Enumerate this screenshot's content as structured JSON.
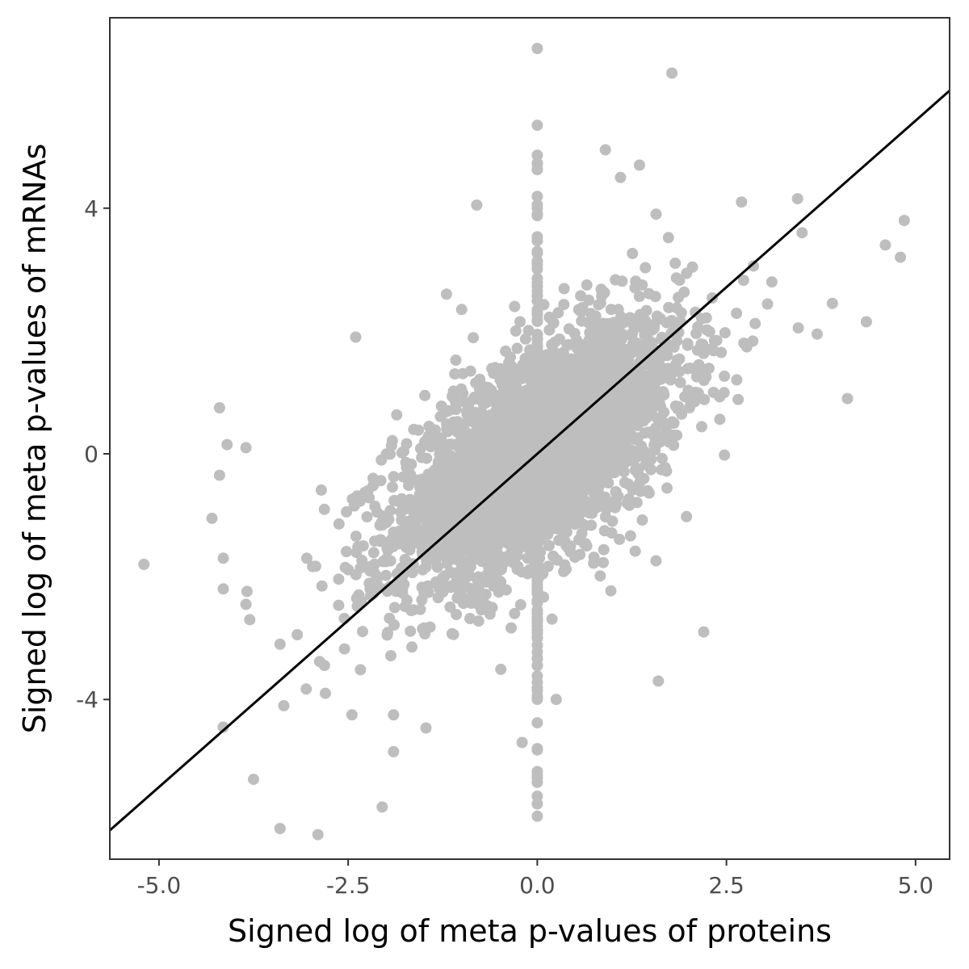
{
  "chart_data": {
    "type": "scatter",
    "xlabel": "Signed log of meta p-values of proteins",
    "ylabel": "Signed log of meta p-values of mRNAs",
    "xlim": [
      -5.65,
      5.45
    ],
    "ylim": [
      -6.6,
      7.1
    ],
    "x_ticks": [
      -5.0,
      -2.5,
      0.0,
      2.5,
      5.0
    ],
    "x_tick_labels": [
      "-5.0",
      "-2.5",
      "0.0",
      "2.5",
      "5.0"
    ],
    "y_ticks": [
      -4,
      0,
      4
    ],
    "y_tick_labels": [
      "-4",
      "0",
      "4"
    ],
    "grid": false,
    "legend": "none",
    "point_color": "#bebebe",
    "line_color": "#000000",
    "frame_color": "#333333",
    "fit_line": {
      "slope": 1.085,
      "intercept": 0.0
    },
    "points_outliers": [
      [
        0.0,
        6.6
      ],
      [
        1.78,
        6.2
      ],
      [
        0.0,
        5.35
      ],
      [
        0.9,
        4.95
      ],
      [
        1.35,
        4.7
      ],
      [
        1.1,
        4.5
      ],
      [
        -0.8,
        4.05
      ],
      [
        0.0,
        4.0
      ],
      [
        2.7,
        4.1
      ],
      [
        4.85,
        3.8
      ],
      [
        4.6,
        3.4
      ],
      [
        4.8,
        3.2
      ],
      [
        4.35,
        2.15
      ],
      [
        4.1,
        0.9
      ],
      [
        -0.3,
        2.4
      ],
      [
        -1.0,
        2.35
      ],
      [
        -2.4,
        1.9
      ],
      [
        -4.2,
        0.75
      ],
      [
        -4.1,
        0.15
      ],
      [
        -3.85,
        0.1
      ],
      [
        -4.3,
        -1.05
      ],
      [
        -4.2,
        -0.35
      ],
      [
        -5.2,
        -1.8
      ],
      [
        -4.15,
        -1.7
      ],
      [
        -4.15,
        -2.2
      ],
      [
        -3.85,
        -2.45
      ],
      [
        -3.8,
        -2.7
      ],
      [
        -3.4,
        -3.1
      ],
      [
        -3.35,
        -4.1
      ],
      [
        -4.15,
        -4.45
      ],
      [
        -3.75,
        -5.3
      ],
      [
        -3.4,
        -6.1
      ],
      [
        -2.9,
        -6.2
      ],
      [
        -2.05,
        -5.75
      ],
      [
        -1.9,
        -4.85
      ],
      [
        -1.9,
        -4.25
      ],
      [
        -2.45,
        -4.25
      ],
      [
        -2.8,
        -3.9
      ],
      [
        0.0,
        -5.9
      ],
      [
        0.0,
        -5.7
      ],
      [
        0.0,
        -5.35
      ],
      [
        0.0,
        -4.8
      ],
      [
        0.25,
        -4.0
      ],
      [
        1.6,
        -3.7
      ],
      [
        -0.2,
        -4.7
      ],
      [
        2.2,
        -2.9
      ],
      [
        -0.3,
        -2.6
      ],
      [
        -1.2,
        2.6
      ],
      [
        3.5,
        3.6
      ],
      [
        3.1,
        2.8
      ],
      [
        3.9,
        2.45
      ],
      [
        3.7,
        1.95
      ],
      [
        3.45,
        2.05
      ]
    ],
    "cloud": {
      "count": 3400,
      "x_sd": 0.95,
      "y_sd": 1.05,
      "correlation": 0.62
    },
    "vertical_band": {
      "x": 0.0,
      "count": 260,
      "y_range": [
        -5.6,
        5.0
      ]
    }
  }
}
